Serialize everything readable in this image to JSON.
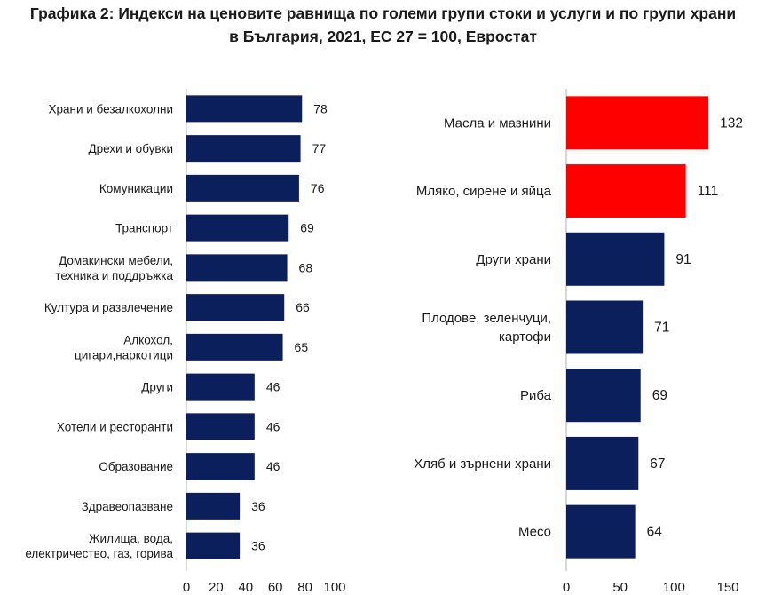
{
  "title_line1": "Графика 2: Индекси на ценовите равнища по големи групи стоки и услуги и по групи храни",
  "title_line2": "в България, 2021, ЕС 27 = 100, Евростат",
  "colors": {
    "bar": "#0a1f5c",
    "highlight": "#ff0000",
    "axis": "#b0b0b0"
  },
  "chart_data": [
    {
      "type": "bar",
      "orientation": "horizontal",
      "title": "",
      "categories": [
        [
          "Храни и безалкохолни"
        ],
        [
          "Дрехи и обувки"
        ],
        [
          "Комуникации"
        ],
        [
          "Транспорт"
        ],
        [
          "Домакински мебели,",
          "техника и поддръжка"
        ],
        [
          "Култура и развлечение"
        ],
        [
          "Алкохол,",
          "цигари,наркотици"
        ],
        [
          "Други"
        ],
        [
          "Хотели и ресторанти"
        ],
        [
          "Образование"
        ],
        [
          "Здравеопазване"
        ],
        [
          "Жилища, вода,",
          "електричество, газ, горива"
        ]
      ],
      "values": [
        78,
        77,
        76,
        69,
        68,
        66,
        65,
        46,
        46,
        46,
        36,
        36
      ],
      "highlight": [],
      "xlim": [
        0,
        100
      ],
      "xticks": [
        0,
        20,
        40,
        60,
        80,
        100
      ],
      "xlabel": "",
      "ylabel": ""
    },
    {
      "type": "bar",
      "orientation": "horizontal",
      "title": "",
      "categories": [
        [
          "Масла и мазнини"
        ],
        [
          "Мляко, сирене и яйца"
        ],
        [
          "Други храни"
        ],
        [
          "Плодове, зеленчуци,",
          "картофи"
        ],
        [
          "Риба"
        ],
        [
          "Хляб и зърнени храни"
        ],
        [
          "Месо"
        ]
      ],
      "values": [
        132,
        111,
        91,
        71,
        69,
        67,
        64
      ],
      "highlight": [
        0,
        1
      ],
      "xlim": [
        0,
        150
      ],
      "xticks": [
        0,
        50,
        100,
        150
      ],
      "xlabel": "",
      "ylabel": ""
    }
  ]
}
